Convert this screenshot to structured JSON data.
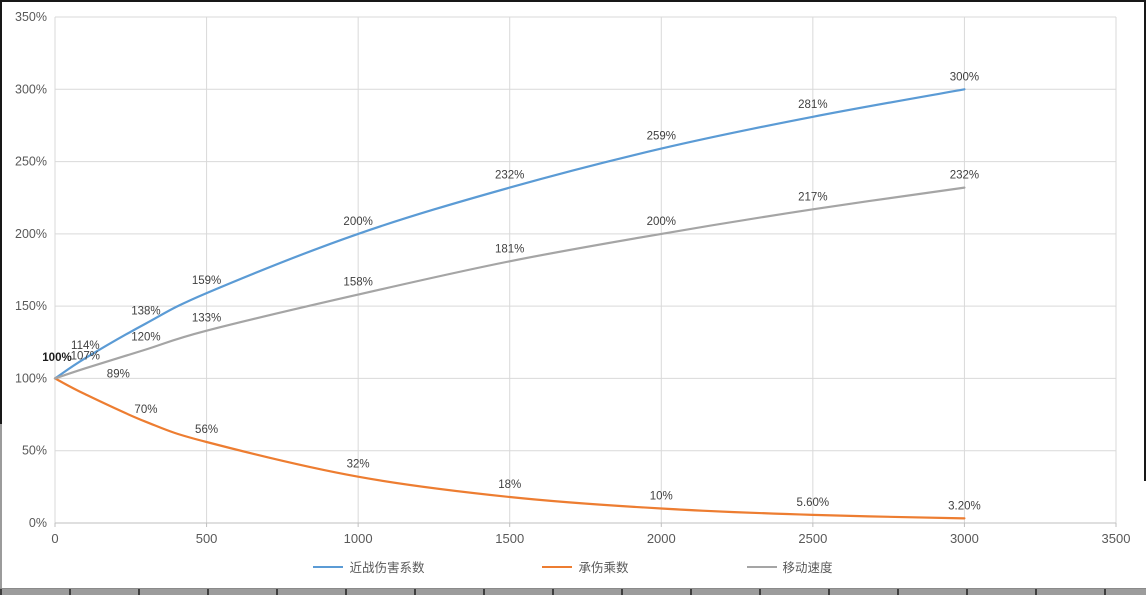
{
  "chart_data": {
    "type": "line",
    "title": "",
    "x": [
      0,
      100,
      300,
      500,
      1000,
      1500,
      2000,
      2500,
      3000
    ],
    "series": [
      {
        "id": "melee-damage-coefficient",
        "name": "近战伤害系数",
        "color": "#5B9BD5",
        "values": [
          100,
          114,
          138,
          159,
          200,
          232,
          259,
          281,
          300
        ],
        "labels": [
          "100%",
          "114%",
          "138%",
          "159%",
          "200%",
          "232%",
          "259%",
          "281%",
          "300%"
        ]
      },
      {
        "id": "damage-taken-multiplier",
        "name": "承伤乘数",
        "color": "#ED7D31",
        "values": [
          100,
          89,
          70,
          56,
          32,
          18,
          10,
          5.6,
          3.2
        ],
        "labels": [
          "100%",
          "89%",
          "70%",
          "56%",
          "32%",
          "18%",
          "10%",
          "5.60%",
          "3.20%"
        ],
        "label_nudge": {
          "1": [
            33,
            -8
          ]
        }
      },
      {
        "id": "movement-speed",
        "name": "移动速度",
        "color": "#A5A5A5",
        "values": [
          100,
          107,
          120,
          133,
          158,
          181,
          200,
          217,
          232
        ],
        "labels": [
          "100%",
          "107%",
          "120%",
          "133%",
          "158%",
          "181%",
          "200%",
          "217%",
          "232%"
        ]
      }
    ],
    "origin_label": "100%",
    "x_axis": {
      "min": 0,
      "max": 3500,
      "tick_labels": [
        "0",
        "500",
        "1000",
        "1500",
        "2000",
        "2500",
        "3000",
        "3500"
      ],
      "tick_values": [
        0,
        500,
        1000,
        1500,
        2000,
        2500,
        3000,
        3500
      ]
    },
    "y_axis": {
      "min": 0,
      "max": 350,
      "tick_labels": [
        "0%",
        "50%",
        "100%",
        "150%",
        "200%",
        "250%",
        "300%",
        "350%"
      ],
      "tick_values": [
        0,
        50,
        100,
        150,
        200,
        250,
        300,
        350
      ]
    },
    "grid": true,
    "legend_position": "bottom",
    "colors": {
      "gridline": "#D9D9D9",
      "axis_line": "#BFBFBF",
      "axis_text": "#595959",
      "data_label_text": "#404040",
      "origin_label_text": "#1a1a1a"
    }
  }
}
